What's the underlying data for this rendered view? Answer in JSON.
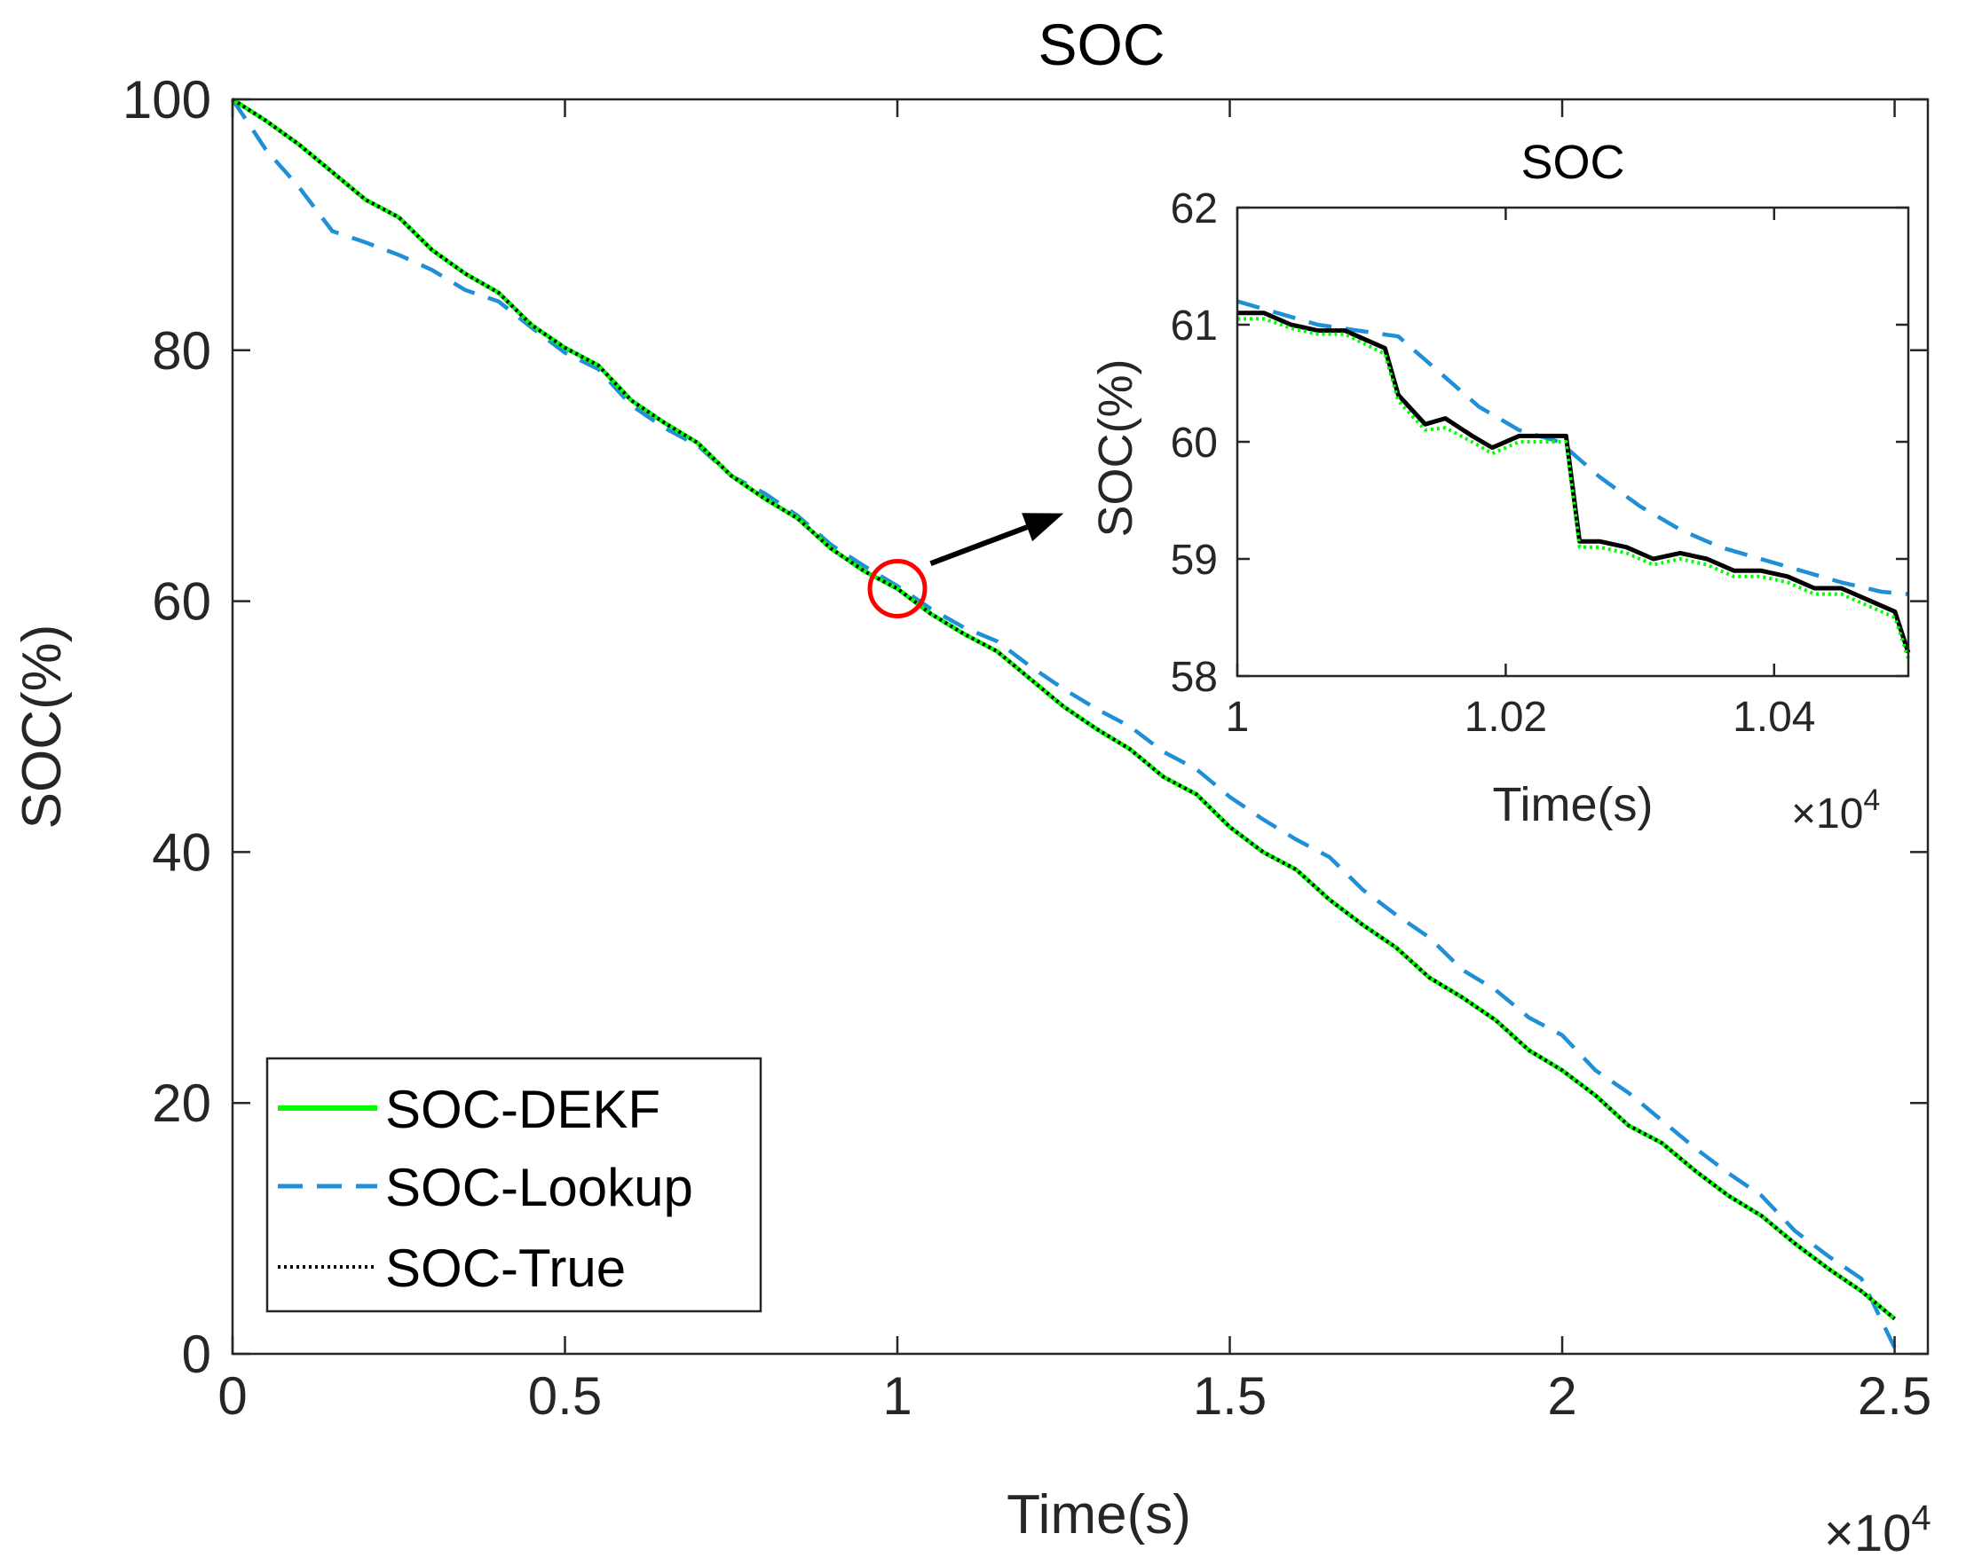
{
  "chart_data": [
    {
      "type": "line",
      "title": "SOC",
      "xlabel": "Time(s)",
      "ylabel": "SOC(%)",
      "x_multiplier_base": "×10",
      "x_multiplier_exp": "4",
      "xlim": [
        0,
        2.55
      ],
      "ylim": [
        0,
        100
      ],
      "xticks": [
        0,
        0.5,
        1,
        1.5,
        2,
        2.5
      ],
      "xtick_labels": [
        "0",
        "0.5",
        "1",
        "1.5",
        "2",
        "2.5"
      ],
      "yticks": [
        0,
        20,
        40,
        60,
        80,
        100
      ],
      "ytick_labels": [
        "0",
        "20",
        "40",
        "60",
        "80",
        "100"
      ],
      "grid": false,
      "legend_position": "bottom-left",
      "series": [
        {
          "name": "SOC-DEKF",
          "color": "#00ff00",
          "style": "solid",
          "x": [
            0,
            0.05,
            0.1,
            0.15,
            0.2,
            0.25,
            0.3,
            0.35,
            0.4,
            0.45,
            0.5,
            0.55,
            0.6,
            0.65,
            0.7,
            0.75,
            0.8,
            0.85,
            0.9,
            0.95,
            1.0,
            1.05,
            1.1,
            1.15,
            1.2,
            1.25,
            1.3,
            1.35,
            1.4,
            1.45,
            1.5,
            1.55,
            1.6,
            1.65,
            1.7,
            1.75,
            1.8,
            1.85,
            1.9,
            1.95,
            2.0,
            2.05,
            2.1,
            2.15,
            2.2,
            2.25,
            2.3,
            2.35,
            2.4,
            2.45,
            2.5
          ],
          "y": [
            100,
            98.3,
            96.4,
            94.2,
            92.0,
            90.6,
            88.0,
            86.1,
            84.6,
            82.0,
            80.2,
            78.8,
            76.0,
            74.2,
            72.6,
            70.0,
            68.2,
            66.6,
            64.2,
            62.4,
            61.0,
            59.0,
            57.4,
            56.0,
            53.8,
            51.6,
            49.8,
            48.2,
            46.0,
            44.6,
            42.0,
            40.0,
            38.6,
            36.2,
            34.2,
            32.4,
            30.0,
            28.4,
            26.6,
            24.2,
            22.6,
            20.6,
            18.2,
            16.8,
            14.6,
            12.6,
            11.0,
            8.8,
            6.8,
            5.0,
            2.8
          ]
        },
        {
          "name": "SOC-Lookup",
          "color": "#1f8fd6",
          "style": "dashed",
          "x": [
            0,
            0.05,
            0.1,
            0.15,
            0.2,
            0.25,
            0.3,
            0.35,
            0.4,
            0.45,
            0.5,
            0.55,
            0.6,
            0.65,
            0.7,
            0.75,
            0.8,
            0.85,
            0.9,
            0.95,
            1.0,
            1.05,
            1.1,
            1.15,
            1.2,
            1.25,
            1.3,
            1.35,
            1.4,
            1.45,
            1.5,
            1.55,
            1.6,
            1.65,
            1.7,
            1.75,
            1.8,
            1.85,
            1.9,
            1.95,
            2.0,
            2.05,
            2.1,
            2.15,
            2.2,
            2.25,
            2.3,
            2.35,
            2.4,
            2.45,
            2.5
          ],
          "y": [
            100,
            96.0,
            93.0,
            89.5,
            88.6,
            87.6,
            86.4,
            84.8,
            83.9,
            81.8,
            79.8,
            78.5,
            75.6,
            73.8,
            72.4,
            70.0,
            68.6,
            66.8,
            64.5,
            62.8,
            61.2,
            59.4,
            57.9,
            56.8,
            54.8,
            53.0,
            51.4,
            50.0,
            48.0,
            46.6,
            44.4,
            42.6,
            41.0,
            39.6,
            37.0,
            35.0,
            33.2,
            30.6,
            29.0,
            26.8,
            25.4,
            22.6,
            20.8,
            18.6,
            16.4,
            14.4,
            12.6,
            9.8,
            7.8,
            6.0,
            0.5
          ]
        },
        {
          "name": "SOC-True",
          "color": "#000000",
          "style": "dotted",
          "x": [
            0,
            0.05,
            0.1,
            0.15,
            0.2,
            0.25,
            0.3,
            0.35,
            0.4,
            0.45,
            0.5,
            0.55,
            0.6,
            0.65,
            0.7,
            0.75,
            0.8,
            0.85,
            0.9,
            0.95,
            1.0,
            1.05,
            1.1,
            1.15,
            1.2,
            1.25,
            1.3,
            1.35,
            1.4,
            1.45,
            1.5,
            1.55,
            1.6,
            1.65,
            1.7,
            1.75,
            1.8,
            1.85,
            1.9,
            1.95,
            2.0,
            2.05,
            2.1,
            2.15,
            2.2,
            2.25,
            2.3,
            2.35,
            2.4,
            2.45,
            2.5
          ],
          "y": [
            100,
            98.3,
            96.4,
            94.2,
            92.0,
            90.6,
            88.0,
            86.1,
            84.6,
            82.0,
            80.2,
            78.8,
            76.0,
            74.2,
            72.6,
            70.0,
            68.2,
            66.6,
            64.2,
            62.4,
            61.0,
            59.0,
            57.4,
            56.0,
            53.8,
            51.6,
            49.8,
            48.2,
            46.0,
            44.6,
            42.0,
            40.0,
            38.6,
            36.2,
            34.2,
            32.4,
            30.0,
            28.4,
            26.6,
            24.2,
            22.6,
            20.6,
            18.2,
            16.8,
            14.6,
            12.6,
            11.0,
            8.8,
            6.8,
            5.0,
            2.8
          ]
        }
      ],
      "annotations": [
        {
          "type": "circle",
          "x": 1.0,
          "y": 61,
          "color": "#ff0000"
        },
        {
          "type": "arrow",
          "color": "#000000",
          "from": [
            1.05,
            63
          ],
          "to": [
            1.25,
            67
          ]
        }
      ]
    },
    {
      "type": "line",
      "title": "SOC",
      "xlabel": "Time(s)",
      "ylabel": "SOC(%)",
      "x_multiplier_base": "×10",
      "x_multiplier_exp": "4",
      "xlim": [
        1.0,
        1.05
      ],
      "ylim": [
        58,
        62
      ],
      "xticks": [
        1.0,
        1.02,
        1.04
      ],
      "xtick_labels": [
        "1",
        "1.02",
        "1.04"
      ],
      "yticks": [
        58,
        59,
        60,
        61,
        62
      ],
      "ytick_labels": [
        "58",
        "59",
        "60",
        "61",
        "62"
      ],
      "grid": false,
      "series": [
        {
          "name": "SOC-Lookup",
          "color": "#1f8fd6",
          "style": "dashed",
          "x": [
            1.0,
            1.003,
            1.006,
            1.009,
            1.012,
            1.015,
            1.018,
            1.021,
            1.024,
            1.027,
            1.03,
            1.033,
            1.036,
            1.039,
            1.042,
            1.045,
            1.048,
            1.05
          ],
          "y": [
            61.2,
            61.1,
            61.0,
            60.95,
            60.9,
            60.6,
            60.3,
            60.1,
            60.0,
            59.7,
            59.45,
            59.25,
            59.1,
            59.0,
            58.9,
            58.8,
            58.72,
            58.7
          ]
        },
        {
          "name": "SOC-True",
          "color": "#000000",
          "style": "solid",
          "x": [
            1.0,
            1.002,
            1.004,
            1.006,
            1.008,
            1.011,
            1.012,
            1.014,
            1.0155,
            1.0175,
            1.019,
            1.021,
            1.0245,
            1.0255,
            1.027,
            1.029,
            1.031,
            1.033,
            1.035,
            1.037,
            1.039,
            1.041,
            1.043,
            1.045,
            1.047,
            1.049,
            1.05
          ],
          "y": [
            61.1,
            61.1,
            61.0,
            60.95,
            60.95,
            60.8,
            60.4,
            60.15,
            60.2,
            60.05,
            59.95,
            60.05,
            60.05,
            59.15,
            59.15,
            59.1,
            59.0,
            59.05,
            59.0,
            58.9,
            58.9,
            58.85,
            58.75,
            58.75,
            58.65,
            58.55,
            58.2
          ]
        },
        {
          "name": "SOC-DEKF",
          "color": "#00ff00",
          "style": "dotted",
          "x": [
            1.0,
            1.002,
            1.004,
            1.006,
            1.008,
            1.011,
            1.012,
            1.014,
            1.0155,
            1.0175,
            1.019,
            1.021,
            1.0245,
            1.0255,
            1.027,
            1.029,
            1.031,
            1.033,
            1.035,
            1.037,
            1.039,
            1.041,
            1.043,
            1.045,
            1.047,
            1.049,
            1.05
          ],
          "y": [
            61.05,
            61.05,
            60.97,
            60.92,
            60.92,
            60.75,
            60.35,
            60.1,
            60.12,
            60.0,
            59.9,
            60.0,
            60.0,
            59.1,
            59.1,
            59.05,
            58.95,
            59.0,
            58.95,
            58.85,
            58.85,
            58.8,
            58.7,
            58.7,
            58.6,
            58.5,
            58.15
          ]
        }
      ]
    }
  ]
}
